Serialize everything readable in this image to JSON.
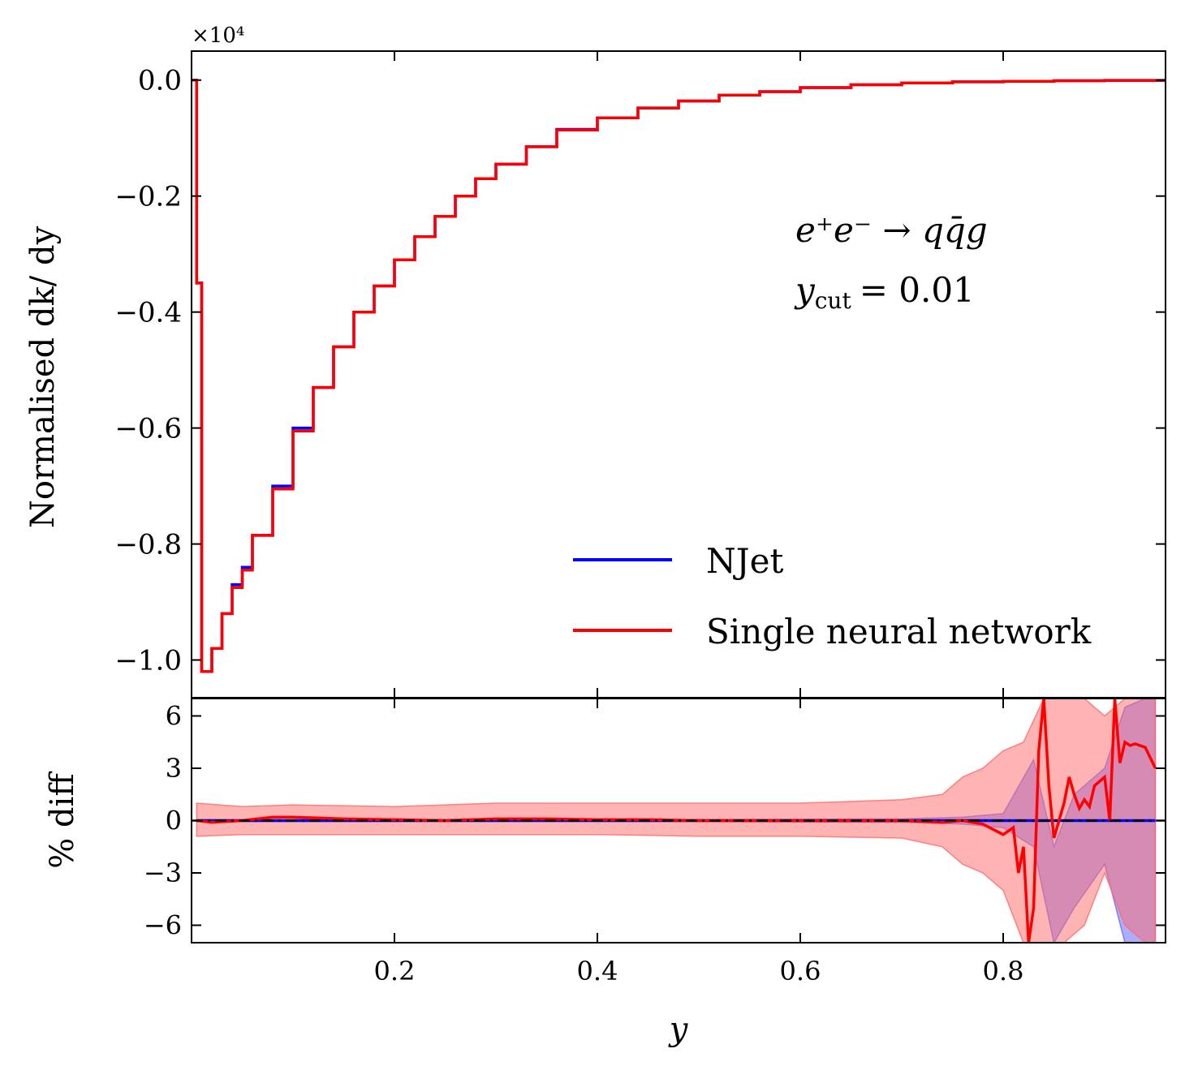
{
  "chart_data": [
    {
      "type": "line",
      "panel": "main",
      "drawstyle": "steps",
      "title": "",
      "xlabel": "",
      "ylabel": "Normalised dk/ dy",
      "scale_label": "×10⁴",
      "xlim": [
        0.0,
        0.96
      ],
      "ylim": [
        -1.065,
        0.05
      ],
      "yticks": [
        0.0,
        -0.2,
        -0.4,
        -0.6,
        -0.8,
        -1.0
      ],
      "ytick_labels": [
        "0.0",
        "−0.2",
        "−0.4",
        "−0.6",
        "−0.8",
        "−1.0"
      ],
      "annotation": {
        "process": "e⁺e⁻ → qq̄g",
        "cut_var": "y",
        "cut_sub": "cut",
        "cut_value": "= 0.01"
      },
      "legend": {
        "location": "lower-right",
        "entries": [
          "NJet",
          "Single neural network"
        ]
      },
      "series": [
        {
          "name": "NJet",
          "color": "#0000ff",
          "x": [
            0.0,
            0.005,
            0.01,
            0.02,
            0.03,
            0.04,
            0.05,
            0.06,
            0.08,
            0.1,
            0.12,
            0.14,
            0.16,
            0.18,
            0.2,
            0.22,
            0.24,
            0.26,
            0.28,
            0.3,
            0.33,
            0.36,
            0.4,
            0.44,
            0.48,
            0.52,
            0.56,
            0.6,
            0.65,
            0.7,
            0.75,
            0.8,
            0.85,
            0.9,
            0.96
          ],
          "y": [
            0.0,
            -0.35,
            -1.02,
            -0.98,
            -0.92,
            -0.87,
            -0.84,
            -0.785,
            -0.7,
            -0.6,
            -0.53,
            -0.46,
            -0.4,
            -0.355,
            -0.31,
            -0.27,
            -0.235,
            -0.2,
            -0.17,
            -0.145,
            -0.115,
            -0.085,
            -0.065,
            -0.048,
            -0.036,
            -0.026,
            -0.02,
            -0.013,
            -0.008,
            -0.005,
            -0.003,
            -0.002,
            -0.001,
            -0.0005,
            0.0
          ]
        },
        {
          "name": "Single neural network",
          "color": "#ff0000",
          "x": [
            0.0,
            0.005,
            0.01,
            0.02,
            0.03,
            0.04,
            0.05,
            0.06,
            0.08,
            0.1,
            0.12,
            0.14,
            0.16,
            0.18,
            0.2,
            0.22,
            0.24,
            0.26,
            0.28,
            0.3,
            0.33,
            0.36,
            0.4,
            0.44,
            0.48,
            0.52,
            0.56,
            0.6,
            0.65,
            0.7,
            0.75,
            0.8,
            0.85,
            0.9,
            0.96
          ],
          "y": [
            0.0,
            -0.35,
            -1.02,
            -0.98,
            -0.92,
            -0.875,
            -0.845,
            -0.785,
            -0.705,
            -0.605,
            -0.53,
            -0.46,
            -0.4,
            -0.355,
            -0.31,
            -0.27,
            -0.235,
            -0.2,
            -0.17,
            -0.145,
            -0.115,
            -0.086,
            -0.065,
            -0.048,
            -0.036,
            -0.026,
            -0.02,
            -0.013,
            -0.008,
            -0.005,
            -0.003,
            -0.002,
            -0.001,
            -0.0005,
            0.0
          ]
        }
      ]
    },
    {
      "type": "line",
      "panel": "ratio",
      "xlabel": "y",
      "ylabel": "% diff",
      "xlim": [
        0.0,
        0.96
      ],
      "ylim": [
        -7,
        7
      ],
      "xticks": [
        0.2,
        0.4,
        0.6,
        0.8
      ],
      "xtick_labels": [
        "0.2",
        "0.4",
        "0.6",
        "0.8"
      ],
      "yticks": [
        6,
        3,
        0,
        -3,
        -6
      ],
      "ytick_labels": [
        "6",
        "3",
        "0",
        "−3",
        "−6"
      ],
      "reference_line": 0,
      "bands": [
        {
          "name": "NJet uncertainty",
          "color": "#6a6aff",
          "x": [
            0.005,
            0.1,
            0.3,
            0.5,
            0.7,
            0.76,
            0.8,
            0.83,
            0.85,
            0.87,
            0.9,
            0.92,
            0.94,
            0.95
          ],
          "upper": [
            0.05,
            0.05,
            0.05,
            0.05,
            0.1,
            0.2,
            0.4,
            3.5,
            -1.5,
            1.5,
            3.0,
            6.5,
            7.0,
            7.0
          ],
          "lower": [
            -0.05,
            -0.05,
            -0.05,
            -0.05,
            -0.1,
            -0.2,
            -0.4,
            -1.5,
            -7.0,
            -5.0,
            -2.5,
            -7.0,
            -7.0,
            -7.0
          ]
        },
        {
          "name": "Single neural network uncertainty",
          "color": "#ff6a6a",
          "x": [
            0.005,
            0.05,
            0.1,
            0.2,
            0.3,
            0.4,
            0.5,
            0.6,
            0.7,
            0.74,
            0.76,
            0.78,
            0.8,
            0.82,
            0.84,
            0.86,
            0.88,
            0.9,
            0.92,
            0.94,
            0.95
          ],
          "upper": [
            1.0,
            0.8,
            0.9,
            0.8,
            1.0,
            1.0,
            1.0,
            1.0,
            1.2,
            1.5,
            2.5,
            3.0,
            4.0,
            4.5,
            7.0,
            7.0,
            7.0,
            6.0,
            7.0,
            7.0,
            7.0
          ],
          "lower": [
            -0.9,
            -0.8,
            -0.8,
            -0.8,
            -0.8,
            -0.8,
            -0.9,
            -0.9,
            -1.0,
            -1.5,
            -2.5,
            -3.0,
            -4.0,
            -7.0,
            -7.0,
            -7.0,
            -6.0,
            -3.0,
            -6.0,
            -7.0,
            -7.0
          ]
        }
      ],
      "series": [
        {
          "name": "NJet",
          "color": "#0000ff",
          "x": [
            0.005,
            0.2,
            0.4,
            0.6,
            0.8,
            0.95
          ],
          "y": [
            0.0,
            0.0,
            0.0,
            0.0,
            0.0,
            0.0
          ]
        },
        {
          "name": "Single neural network",
          "color": "#ff0000",
          "x": [
            0.005,
            0.02,
            0.05,
            0.08,
            0.1,
            0.15,
            0.2,
            0.25,
            0.3,
            0.35,
            0.4,
            0.45,
            0.5,
            0.55,
            0.6,
            0.65,
            0.7,
            0.74,
            0.76,
            0.78,
            0.79,
            0.8,
            0.81,
            0.815,
            0.82,
            0.825,
            0.83,
            0.835,
            0.84,
            0.845,
            0.85,
            0.86,
            0.865,
            0.87,
            0.875,
            0.88,
            0.885,
            0.89,
            0.9,
            0.905,
            0.91,
            0.915,
            0.92,
            0.925,
            0.93,
            0.94,
            0.95
          ],
          "y": [
            0.0,
            -0.1,
            0.0,
            0.2,
            0.2,
            0.1,
            0.05,
            0.0,
            0.1,
            0.1,
            0.05,
            0.05,
            0.0,
            0.0,
            0.0,
            0.0,
            0.0,
            -0.1,
            0.0,
            -0.2,
            -0.5,
            -0.8,
            -0.4,
            -3.0,
            -1.5,
            -7.0,
            -5.0,
            4.0,
            7.0,
            2.0,
            -1.0,
            1.0,
            2.5,
            1.5,
            0.7,
            1.2,
            0.8,
            2.0,
            2.5,
            0.0,
            7.0,
            3.3,
            4.5,
            4.3,
            4.4,
            4.2,
            3.0
          ]
        }
      ]
    }
  ]
}
